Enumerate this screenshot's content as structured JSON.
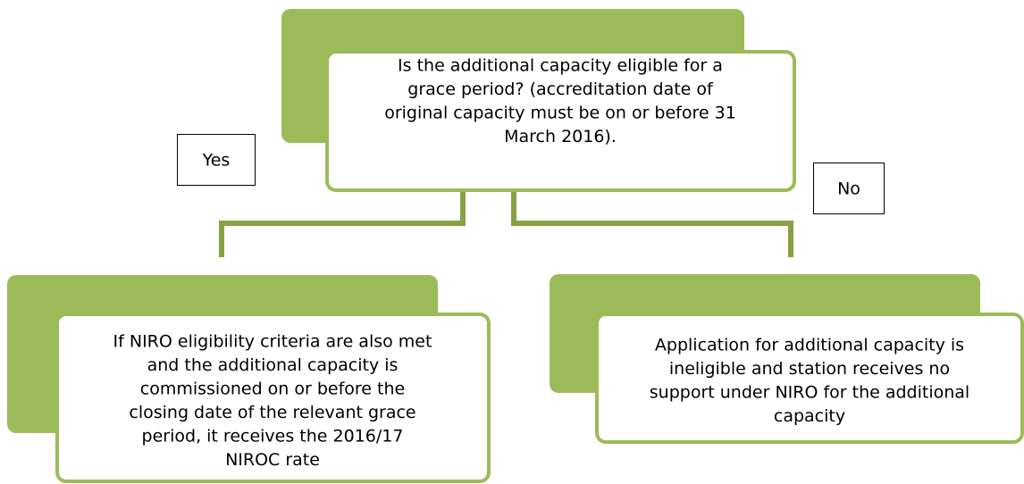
{
  "nodes": [
    {
      "label": [
        "Is the additional capacity eligible for a",
        "grace period? (accreditation date of",
        "original capacity must be on or before 31",
        "March 2016)."
      ]
    },
    {
      "label": [
        "If NIRO eligibility criteria are also met",
        "and the additional capacity is",
        "commissioned on or before the",
        "closing date of the relevant grace",
        "period, it receives the 2016/17",
        "NIROC rate"
      ]
    },
    {
      "label": [
        "Application for additional capacity is",
        "ineligible and station receives no",
        "support under NIRO for the additional",
        "capacity"
      ]
    }
  ],
  "edges": [
    {
      "label": "Yes"
    },
    {
      "label": "No"
    }
  ]
}
